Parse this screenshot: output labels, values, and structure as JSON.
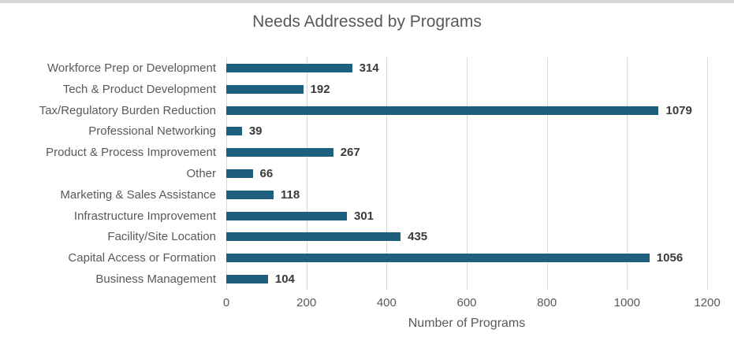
{
  "chart_data": {
    "type": "bar",
    "orientation": "horizontal",
    "title": "Needs Addressed by Programs",
    "xlabel": "Number of Programs",
    "categories": [
      "Workforce Prep or Development",
      "Tech & Product Development",
      "Tax/Regulatory Burden Reduction",
      "Professional Networking",
      "Product & Process Improvement",
      "Other",
      "Marketing & Sales Assistance",
      "Infrastructure Improvement",
      "Facility/Site Location",
      "Capital Access or Formation",
      "Business Management"
    ],
    "values": [
      314,
      192,
      1079,
      39,
      267,
      66,
      118,
      301,
      435,
      1056,
      104
    ],
    "xlim": [
      0,
      1200
    ],
    "xticks": [
      0,
      200,
      400,
      600,
      800,
      1000,
      1200
    ],
    "grid": "vertical-only",
    "legend": "none",
    "data_labels": true,
    "colors": {
      "bar": "#1F5F7E",
      "title_text": "#595959",
      "category_text": "#595959",
      "tick_text": "#595959",
      "axis_title_text": "#595959",
      "value_text": "#3A3A3A",
      "gridline": "#D9D9D9",
      "top_border": "#D6D6D6",
      "background": "#FFFFFF"
    }
  }
}
